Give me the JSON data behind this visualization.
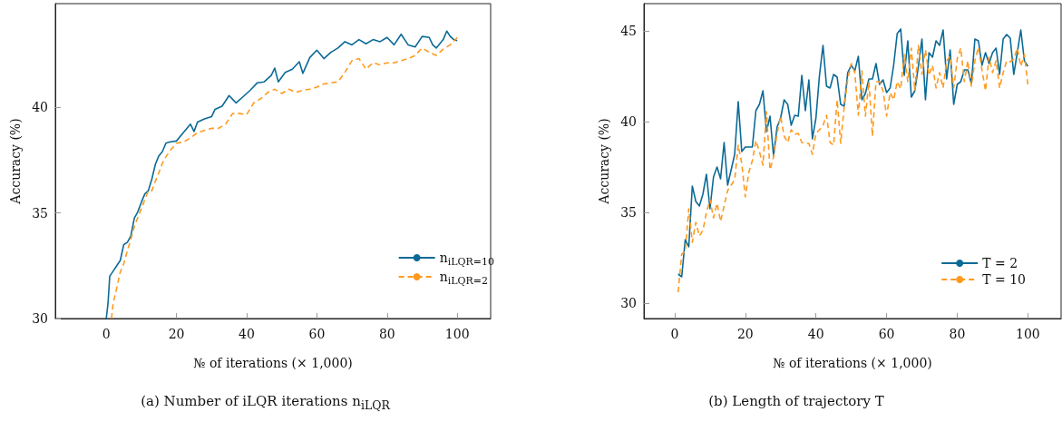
{
  "chart_data": [
    {
      "type": "line",
      "title": "(a) Number of iLQR iterations n$_{iLQR}$",
      "xlabel": "№ of iterations (× 1,000)",
      "ylabel": "Accuracy (%)",
      "xlim": [
        -14.5,
        109.5
      ],
      "ylim": [
        30,
        44.9
      ],
      "xticks": [
        0,
        20,
        40,
        60,
        80,
        100
      ],
      "yticks": [
        30,
        35,
        40
      ],
      "grid": false,
      "legend": "bottom right",
      "marker": "none",
      "series": [
        {
          "name": "n$_{iLQR=10}$",
          "color": "#0b6a96",
          "line_style": "solid",
          "x": [
            0,
            0.5,
            1,
            2,
            3,
            4,
            5,
            6,
            7,
            8,
            9,
            10,
            11,
            12,
            13,
            14,
            15,
            16,
            17,
            18,
            20,
            22,
            24,
            25,
            26,
            28,
            30,
            31,
            33,
            35,
            37,
            39,
            41,
            43,
            45,
            47,
            48,
            49,
            51,
            53,
            55,
            56,
            58,
            60,
            62,
            64,
            66,
            68,
            70,
            72,
            74,
            76,
            78,
            80,
            82,
            84,
            86,
            88,
            90,
            92,
            93,
            94,
            96,
            97,
            98,
            99,
            100
          ],
          "values": [
            30.0,
            30.7,
            32.0,
            32.25,
            32.5,
            32.75,
            33.5,
            33.6,
            33.9,
            34.75,
            35.05,
            35.5,
            35.9,
            36.05,
            36.6,
            37.3,
            37.7,
            37.9,
            38.3,
            38.35,
            38.4,
            38.8,
            39.2,
            38.85,
            39.3,
            39.45,
            39.55,
            39.9,
            40.05,
            40.55,
            40.2,
            40.5,
            40.8,
            41.15,
            41.2,
            41.5,
            41.85,
            41.2,
            41.65,
            41.8,
            42.15,
            41.6,
            42.35,
            42.7,
            42.3,
            42.6,
            42.8,
            43.1,
            42.95,
            43.2,
            43.0,
            43.2,
            43.1,
            43.3,
            42.95,
            43.45,
            42.95,
            42.85,
            43.35,
            43.3,
            42.95,
            42.8,
            43.2,
            43.6,
            43.35,
            43.2,
            43.15
          ]
        },
        {
          "name": "n$_{iLQR=2}$",
          "color": "#ff9a1f",
          "line_style": "dashed",
          "x": [
            1.5,
            2,
            3,
            4,
            5,
            6,
            7,
            8,
            10,
            12,
            13,
            14,
            15,
            16,
            17,
            18,
            20,
            22,
            24,
            26,
            28,
            30,
            32,
            34,
            36,
            38,
            40,
            42,
            44,
            46,
            48,
            50,
            52,
            54,
            56,
            58,
            60,
            62,
            64,
            66,
            68,
            70,
            72,
            74,
            76,
            78,
            80,
            82,
            84,
            86,
            88,
            90,
            92,
            94,
            96,
            98,
            100
          ],
          "values": [
            30.0,
            30.75,
            31.45,
            32.2,
            32.6,
            33.2,
            33.75,
            34.35,
            35.2,
            36.05,
            36.05,
            36.5,
            36.9,
            37.35,
            37.65,
            37.9,
            38.3,
            38.35,
            38.55,
            38.8,
            38.9,
            39.0,
            39.0,
            39.2,
            39.7,
            39.7,
            39.65,
            40.2,
            40.4,
            40.7,
            40.85,
            40.65,
            40.85,
            40.7,
            40.8,
            40.85,
            40.95,
            41.1,
            41.15,
            41.2,
            41.65,
            42.2,
            42.3,
            41.8,
            42.1,
            42.0,
            42.1,
            42.1,
            42.2,
            42.3,
            42.45,
            42.8,
            42.6,
            42.45,
            42.75,
            42.95,
            43.3
          ]
        }
      ]
    },
    {
      "type": "line",
      "title": "(b) Length of trajectory T",
      "xlabel": "№ of iterations (× 1,000)",
      "ylabel": "Accuracy (%)",
      "xlim": [
        -8.7,
        109.4
      ],
      "ylim": [
        29.15,
        46.5
      ],
      "xticks": [
        0,
        20,
        40,
        60,
        80,
        100
      ],
      "yticks": [
        30,
        35,
        40,
        45
      ],
      "grid": false,
      "legend": "bottom right",
      "marker": "none",
      "x": [
        1,
        2,
        3,
        4,
        5,
        6,
        7,
        8,
        9,
        10,
        11,
        12,
        13,
        14,
        15,
        16,
        17,
        18,
        19,
        20,
        21,
        22,
        23,
        24,
        25,
        26,
        27,
        28,
        29,
        30,
        31,
        32,
        33,
        34,
        35,
        36,
        37,
        38,
        39,
        40,
        41,
        42,
        43,
        44,
        45,
        46,
        47,
        48,
        49,
        50,
        51,
        52,
        53,
        54,
        55,
        56,
        57,
        58,
        59,
        60,
        61,
        62,
        63,
        64,
        65,
        66,
        67,
        68,
        69,
        70,
        71,
        72,
        73,
        74,
        75,
        76,
        77,
        78,
        79,
        80,
        81,
        82,
        83,
        84,
        85,
        86,
        87,
        88,
        89,
        90,
        91,
        92,
        93,
        94,
        95,
        96,
        97,
        98,
        99,
        100
      ],
      "series": [
        {
          "name": "T = 2",
          "color": "#0b6a96",
          "line_style": "solid",
          "values": [
            31.6,
            31.45,
            33.5,
            33.1,
            36.45,
            35.6,
            35.35,
            36.0,
            37.1,
            35.2,
            36.95,
            37.5,
            36.85,
            38.85,
            36.5,
            37.35,
            38.2,
            41.1,
            38.35,
            38.6,
            38.6,
            38.6,
            40.6,
            40.95,
            41.7,
            39.45,
            40.3,
            38.1,
            39.7,
            40.2,
            41.2,
            40.95,
            39.8,
            40.35,
            40.3,
            42.55,
            40.6,
            42.3,
            39.05,
            40.2,
            42.55,
            44.2,
            41.95,
            41.85,
            42.6,
            42.45,
            40.95,
            40.85,
            42.7,
            43.1,
            42.8,
            43.6,
            41.2,
            41.55,
            42.35,
            42.35,
            43.2,
            42.05,
            42.3,
            41.6,
            41.85,
            43.1,
            44.85,
            45.1,
            42.55,
            44.45,
            41.35,
            41.7,
            43.05,
            44.55,
            41.2,
            43.8,
            43.55,
            44.45,
            44.2,
            45.05,
            42.35,
            43.95,
            40.95,
            42.05,
            42.2,
            42.85,
            42.85,
            42.1,
            44.55,
            44.45,
            43.1,
            43.8,
            43.2,
            43.8,
            44.05,
            42.6,
            44.55,
            44.8,
            44.6,
            42.6,
            43.8,
            45.05,
            43.35,
            43.05
          ]
        },
        {
          "name": "T = 10",
          "color": "#ff9a1f",
          "line_style": "dashed",
          "values": [
            30.6,
            32.7,
            32.85,
            35.2,
            33.35,
            34.45,
            33.7,
            34.0,
            35.0,
            35.7,
            34.7,
            35.5,
            34.5,
            35.35,
            36.2,
            36.5,
            36.8,
            38.7,
            37.7,
            35.85,
            37.2,
            37.85,
            38.95,
            38.35,
            37.6,
            40.55,
            37.35,
            38.05,
            39.35,
            40.3,
            39.2,
            38.85,
            39.55,
            39.3,
            39.35,
            38.85,
            38.8,
            38.8,
            38.2,
            39.35,
            39.55,
            39.8,
            40.35,
            38.85,
            38.7,
            41.2,
            38.8,
            40.8,
            42.35,
            43.2,
            42.7,
            40.35,
            42.8,
            40.3,
            42.2,
            39.2,
            42.2,
            42.2,
            41.7,
            40.3,
            41.6,
            41.2,
            42.2,
            41.8,
            43.7,
            42.2,
            44.05,
            41.7,
            44.2,
            42.6,
            43.95,
            42.55,
            43.1,
            41.85,
            42.7,
            41.85,
            43.35,
            43.6,
            41.85,
            43.45,
            44.05,
            42.2,
            43.35,
            41.95,
            43.35,
            44.1,
            42.85,
            41.7,
            43.55,
            42.7,
            43.35,
            41.85,
            42.7,
            43.35,
            43.3,
            43.45,
            44.05,
            43.05,
            43.7,
            42.05
          ]
        }
      ]
    }
  ]
}
